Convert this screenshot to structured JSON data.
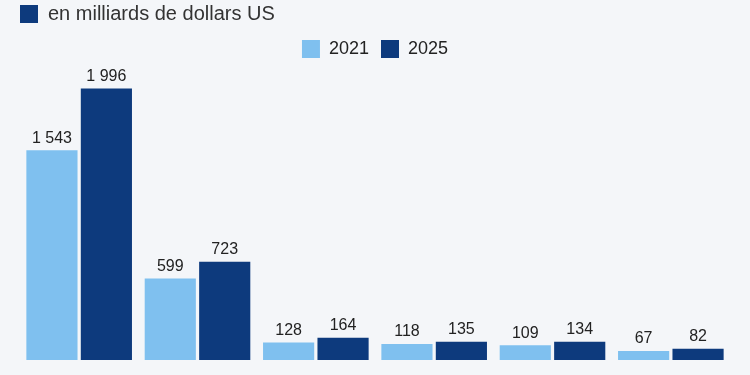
{
  "chart_data": {
    "type": "bar",
    "subtitle": "en milliards de dollars US",
    "categories": [
      null,
      null,
      null,
      null,
      null,
      null
    ],
    "series": [
      {
        "name": "2021",
        "color": "#7fc0ef",
        "values": [
          1543,
          599,
          128,
          118,
          109,
          67
        ],
        "value_labels": [
          "1 543",
          "599",
          "128",
          "118",
          "109",
          "67"
        ]
      },
      {
        "name": "2025",
        "color": "#0d3a7d",
        "values": [
          1996,
          723,
          164,
          135,
          134,
          82
        ],
        "value_labels": [
          "1 996",
          "723",
          "164",
          "135",
          "134",
          "82"
        ]
      }
    ],
    "ylim": [
      0,
      2000
    ],
    "grid": false,
    "legend": "top",
    "data_labels": true,
    "tick_labels": false
  }
}
